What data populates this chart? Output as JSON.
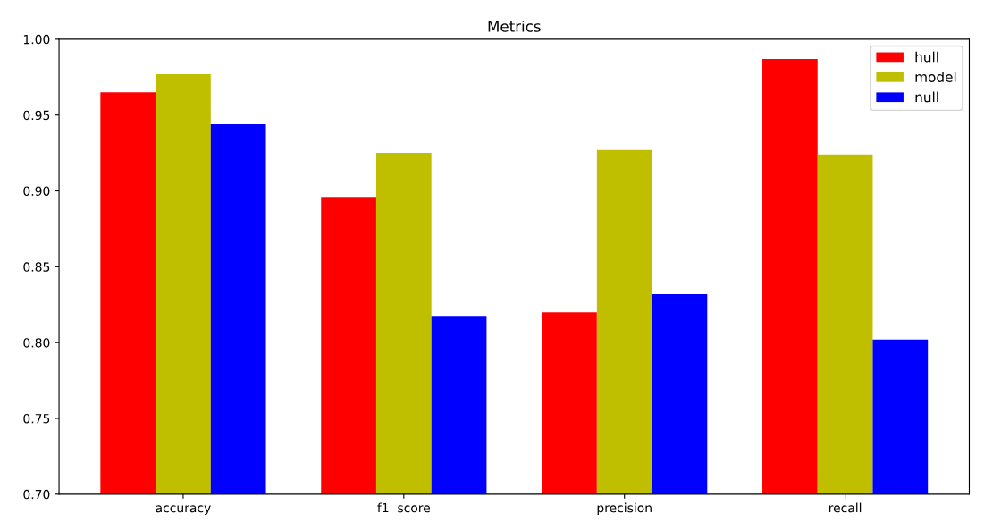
{
  "chart_data": {
    "type": "bar",
    "title": "Metrics",
    "categories": [
      "accuracy",
      "f1  score",
      "precision",
      "recall"
    ],
    "series": [
      {
        "name": "hull",
        "color": "#ff0000",
        "values": [
          0.965,
          0.896,
          0.82,
          0.987
        ]
      },
      {
        "name": "model",
        "color": "#bfbf00",
        "values": [
          0.977,
          0.925,
          0.927,
          0.924
        ]
      },
      {
        "name": "null",
        "color": "#0000ff",
        "values": [
          0.944,
          0.817,
          0.832,
          0.802
        ]
      }
    ],
    "ylim": [
      0.7,
      1.0
    ],
    "yticks": [
      {
        "value": 0.7,
        "label": "0.70"
      },
      {
        "value": 0.75,
        "label": "0.75"
      },
      {
        "value": 0.8,
        "label": "0.80"
      },
      {
        "value": 0.85,
        "label": "0.85"
      },
      {
        "value": 0.9,
        "label": "0.90"
      },
      {
        "value": 0.95,
        "label": "0.95"
      },
      {
        "value": 1.0,
        "label": "1.00"
      }
    ],
    "legend": "top right",
    "grid": false
  }
}
